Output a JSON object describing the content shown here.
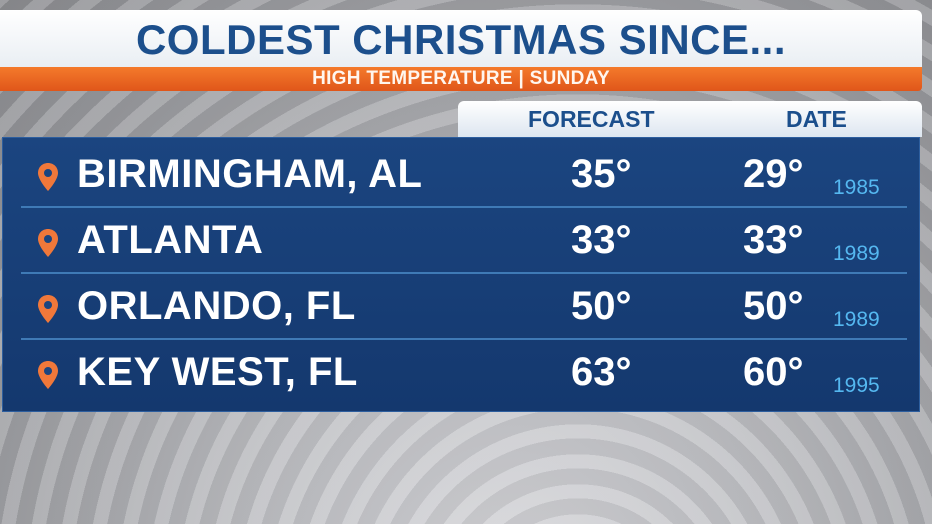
{
  "header": {
    "title": "COLDEST CHRISTMAS SINCE...",
    "subtitle": "HIGH TEMPERATURE | SUNDAY"
  },
  "columns": {
    "forecast": "FORECAST",
    "date": "DATE"
  },
  "colors": {
    "title_blue": "#1c4f8c",
    "accent_orange": "#f47a2b",
    "panel_blue": "#1b4580",
    "year_blue": "#55b8f0",
    "pin_orange": "#f0783a"
  },
  "rows": [
    {
      "icon": "map-pin-icon",
      "city": "BIRMINGHAM, AL",
      "forecast": "35°",
      "record": "29°",
      "year": "1985"
    },
    {
      "icon": "map-pin-icon",
      "city": "ATLANTA",
      "forecast": "33°",
      "record": "33°",
      "year": "1989"
    },
    {
      "icon": "map-pin-icon",
      "city": "ORLANDO, FL",
      "forecast": "50°",
      "record": "50°",
      "year": "1989"
    },
    {
      "icon": "map-pin-icon",
      "city": "KEY WEST, FL",
      "forecast": "63°",
      "record": "60°",
      "year": "1995"
    }
  ]
}
